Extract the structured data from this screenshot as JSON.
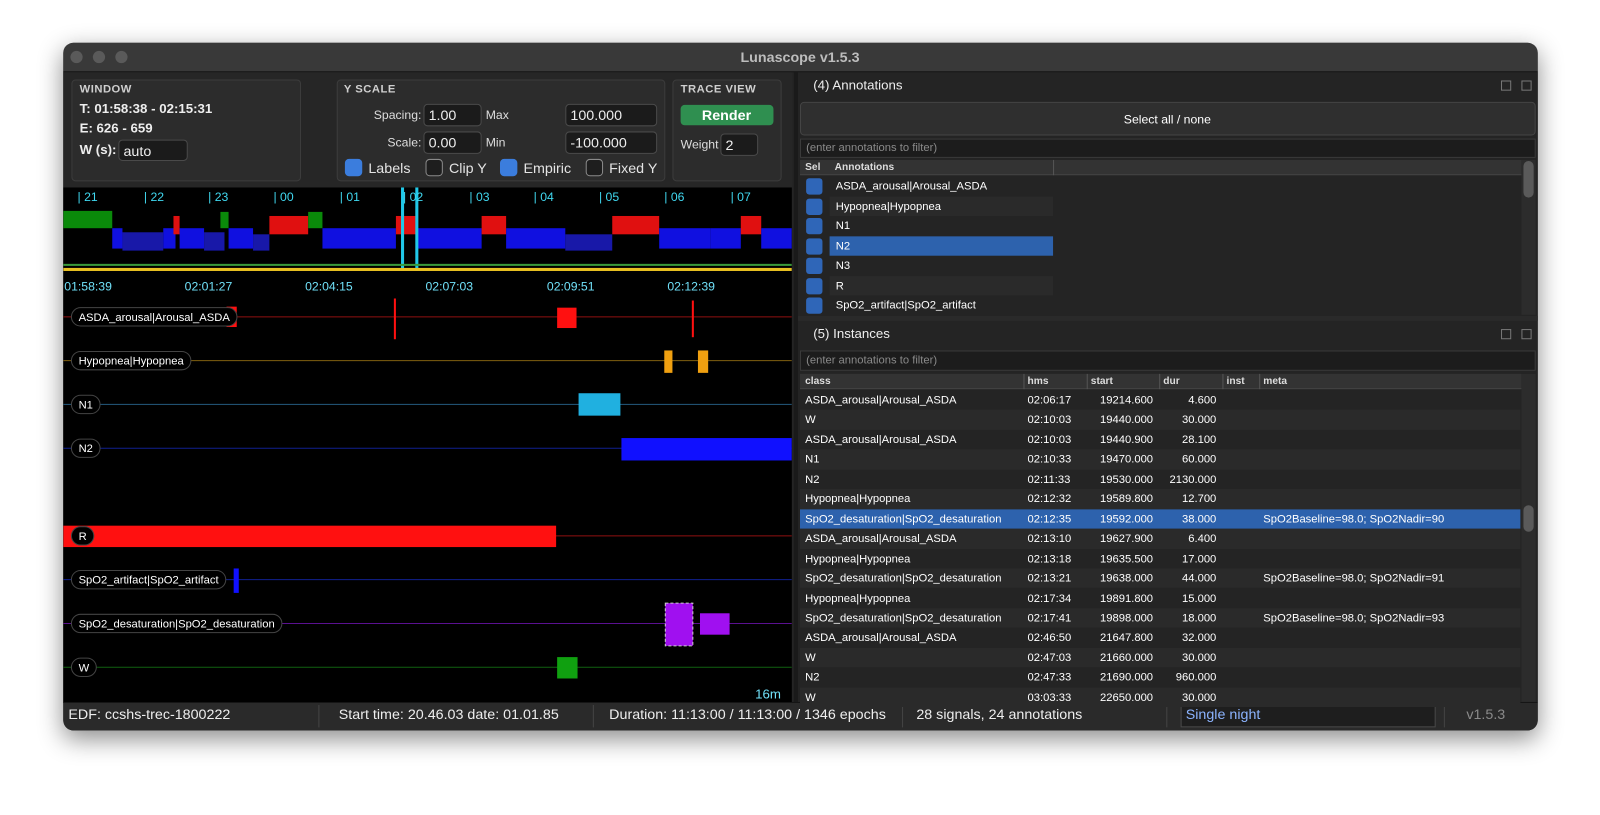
{
  "window_title": "Lunascope v1.5.3",
  "window_panel": {
    "heading": "WINDOW",
    "time": "T: 01:58:38 - 02:15:31",
    "epochs": "E: 626 - 659",
    "width_label": "W (s):",
    "width_value": "auto"
  },
  "y_scale": {
    "heading": "Y SCALE",
    "spacing_label": "Spacing:",
    "spacing_value": "1.00",
    "max_label": "Max",
    "max_value": "100.000",
    "scale_label": "Scale:",
    "scale_value": "0.00",
    "min_label": "Min",
    "min_value": "-100.000",
    "checkboxes": [
      {
        "label": "Labels",
        "checked": true
      },
      {
        "label": "Clip Y",
        "checked": false
      },
      {
        "label": "Empiric",
        "checked": true
      },
      {
        "label": "Fixed Y",
        "checked": false
      }
    ]
  },
  "trace_view": {
    "heading": "TRACE VIEW",
    "render": "Render",
    "weight_label": "Weight",
    "weight_value": "2"
  },
  "hypnogram": {
    "hour_labels": [
      "| 21",
      "| 22",
      "| 23",
      "| 00",
      "| 01",
      "| 02",
      "| 03",
      "| 04",
      "| 05",
      "| 06",
      "| 07"
    ]
  },
  "trace": {
    "time_labels": [
      "01:58:39",
      "02:01:27",
      "02:04:15",
      "02:07:03",
      "02:09:51",
      "02:12:39"
    ],
    "tracks": [
      "ASDA_arousal|Arousal_ASDA",
      "Hypopnea|Hypopnea",
      "N1",
      "N2",
      "R",
      "SpO2_artifact|SpO2_artifact",
      "SpO2_desaturation|SpO2_desaturation",
      "W"
    ],
    "scale_label": "16m"
  },
  "annotations": {
    "title": "(4) Annotations",
    "select_all": "Select all / none",
    "filter_placeholder": "(enter annotations to filter)",
    "headers": [
      "Sel",
      "Annotations"
    ],
    "rows": [
      {
        "label": "ASDA_arousal|Arousal_ASDA",
        "selected": false
      },
      {
        "label": "Hypopnea|Hypopnea",
        "selected": false
      },
      {
        "label": "N1",
        "selected": false
      },
      {
        "label": "N2",
        "selected": true
      },
      {
        "label": "N3",
        "selected": false
      },
      {
        "label": "R",
        "selected": false
      },
      {
        "label": "SpO2_artifact|SpO2_artifact",
        "selected": false
      }
    ]
  },
  "instances": {
    "title": "(5) Instances",
    "filter_placeholder": "(enter annotations to filter)",
    "headers": [
      "class",
      "hms",
      "start",
      "dur",
      "inst",
      "meta"
    ],
    "rows": [
      {
        "class": "ASDA_arousal|Arousal_ASDA",
        "hms": "02:06:17",
        "start": "19214.600",
        "dur": "4.600"
      },
      {
        "class": "W",
        "hms": "02:10:03",
        "start": "19440.000",
        "dur": "30.000"
      },
      {
        "class": "ASDA_arousal|Arousal_ASDA",
        "hms": "02:10:03",
        "start": "19440.900",
        "dur": "28.100"
      },
      {
        "class": "N1",
        "hms": "02:10:33",
        "start": "19470.000",
        "dur": "60.000"
      },
      {
        "class": "N2",
        "hms": "02:11:33",
        "start": "19530.000",
        "dur": "2130.000"
      },
      {
        "class": "Hypopnea|Hypopnea",
        "hms": "02:12:32",
        "start": "19589.800",
        "dur": "12.700"
      },
      {
        "class": "SpO2_desaturation|SpO2_desaturation",
        "hms": "02:12:35",
        "start": "19592.000",
        "dur": "38.000",
        "meta": "SpO2Baseline=98.0; SpO2Nadir=90",
        "selected": true
      },
      {
        "class": "ASDA_arousal|Arousal_ASDA",
        "hms": "02:13:10",
        "start": "19627.900",
        "dur": "6.400"
      },
      {
        "class": "Hypopnea|Hypopnea",
        "hms": "02:13:18",
        "start": "19635.500",
        "dur": "17.000"
      },
      {
        "class": "SpO2_desaturation|SpO2_desaturation",
        "hms": "02:13:21",
        "start": "19638.000",
        "dur": "44.000",
        "meta": "SpO2Baseline=98.0; SpO2Nadir=91"
      },
      {
        "class": "Hypopnea|Hypopnea",
        "hms": "02:17:34",
        "start": "19891.800",
        "dur": "15.000"
      },
      {
        "class": "SpO2_desaturation|SpO2_desaturation",
        "hms": "02:17:41",
        "start": "19898.000",
        "dur": "18.000",
        "meta": "SpO2Baseline=98.0; SpO2Nadir=93"
      },
      {
        "class": "ASDA_arousal|Arousal_ASDA",
        "hms": "02:46:50",
        "start": "21647.800",
        "dur": "32.000"
      },
      {
        "class": "W",
        "hms": "02:47:03",
        "start": "21660.000",
        "dur": "30.000"
      },
      {
        "class": "N2",
        "hms": "02:47:33",
        "start": "21690.000",
        "dur": "960.000"
      },
      {
        "class": "W",
        "hms": "03:03:33",
        "start": "22650.000",
        "dur": "30.000"
      }
    ]
  },
  "status_bar": {
    "file": "EDF: ccshs-trec-1800222",
    "start": "Start time: 20.46.03 date: 01.01.85",
    "duration": "Duration: 11:13:00 / 11:13:00 / 1346 epochs",
    "signals": "28 signals, 24 annotations",
    "mode": "Single night",
    "version": "v1.5.3"
  }
}
